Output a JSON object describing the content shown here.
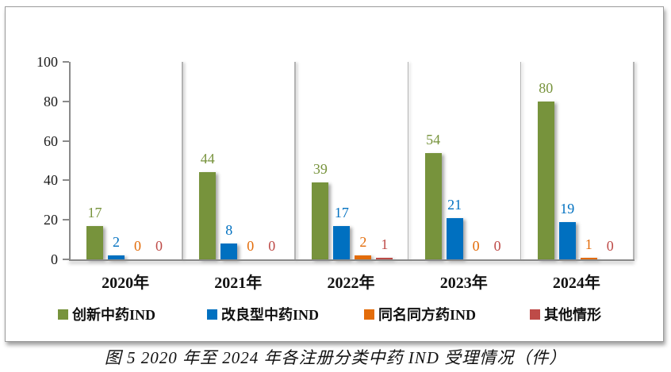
{
  "caption": "图 5  2020 年至 2024 年各注册分类中药 IND 受理情况（件）",
  "chart_data": {
    "type": "bar",
    "title": "",
    "xlabel": "",
    "ylabel": "",
    "ylim": [
      0,
      100
    ],
    "yticks": [
      0,
      20,
      40,
      60,
      80,
      100
    ],
    "grid": "vertical-category-separators",
    "legend_position": "bottom",
    "value_labels": true,
    "categories": [
      "2020年",
      "2021年",
      "2022年",
      "2023年",
      "2024年"
    ],
    "series": [
      {
        "name": "创新中药IND",
        "key": "innovative-tcm-ind",
        "color": "#77933C",
        "values": [
          17,
          44,
          39,
          54,
          80
        ]
      },
      {
        "name": "改良型中药IND",
        "key": "improved-tcm-ind",
        "color": "#0070C0",
        "values": [
          2,
          8,
          17,
          21,
          19
        ]
      },
      {
        "name": "同名同方药IND",
        "key": "same-name-same-formula-ind",
        "color": "#E36C0A",
        "values": [
          0,
          0,
          2,
          0,
          1
        ]
      },
      {
        "name": "其他情形",
        "key": "other-cases",
        "color": "#BE4B48",
        "values": [
          0,
          0,
          1,
          0,
          0
        ]
      }
    ]
  }
}
